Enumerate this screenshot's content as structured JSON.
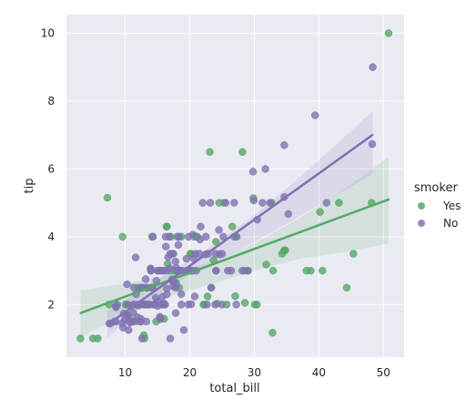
{
  "chart_data": {
    "type": "scatter",
    "title": "",
    "xlabel": "total_bill",
    "ylabel": "tip",
    "xlim": [
      0.9,
      53.2
    ],
    "ylim": [
      0.45,
      10.55
    ],
    "xticks": [
      10,
      20,
      30,
      40,
      50
    ],
    "yticks": [
      2,
      4,
      6,
      8,
      10
    ],
    "grid": true,
    "legend": {
      "title": "smoker",
      "placement": "right"
    },
    "series": [
      {
        "name": "Yes",
        "color": "#55a868",
        "fit": {
          "x": [
            3.1,
            50.8
          ],
          "y": [
            1.75,
            5.1
          ]
        },
        "ci": {
          "x": [
            3.1,
            10,
            17,
            24,
            30,
            37,
            44,
            50.8
          ],
          "upper": [
            2.42,
            2.62,
            2.9,
            3.3,
            3.8,
            4.55,
            5.4,
            6.35
          ],
          "lower": [
            1.05,
            1.7,
            2.25,
            2.65,
            3.0,
            3.35,
            3.55,
            3.8
          ]
        },
        "x": [
          3.07,
          5.75,
          7.25,
          7.51,
          9.6,
          10.07,
          10.34,
          10.59,
          11.02,
          11.59,
          12.16,
          12.9,
          13.0,
          13.42,
          14.15,
          15.06,
          15.69,
          16.04,
          16.47,
          16.58,
          17.07,
          17.31,
          17.51,
          18.04,
          19.44,
          20.27,
          20.69,
          21.01,
          22.23,
          22.76,
          23.1,
          23.33,
          24.06,
          24.27,
          25.29,
          26.59,
          27.05,
          27.28,
          28.17,
          28.44,
          29.85,
          30.4,
          31.85,
          32.68,
          32.83,
          34.3,
          38.07,
          38.73,
          40.55,
          43.11,
          44.3,
          45.35,
          48.17,
          50.81,
          5.0,
          7.74,
          12.03,
          13.81,
          15.48,
          16.4,
          18.35,
          20.08,
          22.12,
          24.55,
          26.86,
          28.97,
          30.06,
          32.9,
          34.63,
          34.81,
          40.17,
          13.94,
          14.78,
          16.9,
          18.71,
          19.82,
          21.16,
          23.68,
          25.71,
          28.55
        ],
        "y": [
          1.0,
          1.0,
          5.15,
          2.0,
          4.0,
          2.0,
          2.0,
          1.61,
          1.98,
          1.5,
          2.5,
          1.1,
          1.0,
          2.5,
          4.0,
          3.0,
          2.0,
          1.58,
          4.3,
          3.2,
          4.0,
          3.5,
          3.0,
          4.0,
          3.0,
          3.5,
          4.0,
          4.0,
          2.0,
          2.24,
          6.5,
          2.5,
          3.85,
          2.03,
          5.0,
          4.3,
          2.25,
          4.0,
          6.5,
          3.0,
          5.14,
          2.0,
          3.18,
          5.0,
          1.17,
          3.5,
          3.0,
          3.0,
          3.0,
          5.0,
          2.5,
          3.5,
          5.0,
          10.0,
          1.0,
          1.44,
          2.5,
          2.0,
          1.6,
          4.3,
          2.5,
          3.5,
          2.0,
          5.0,
          4.0,
          3.0,
          2.0,
          3.0,
          3.6,
          3.6,
          4.73,
          3.06,
          1.5,
          3.0,
          4.0,
          3.0,
          4.0,
          3.31,
          2.0,
          2.05
        ]
      },
      {
        "name": "No",
        "color": "#8172b2",
        "fit": {
          "x": [
            7.25,
            48.3
          ],
          "y": [
            1.4,
            7.0
          ]
        },
        "ci": {
          "x": [
            7.25,
            12,
            17,
            22,
            27,
            32,
            37,
            42,
            48.3
          ],
          "upper": [
            1.82,
            2.38,
            2.95,
            3.55,
            4.22,
            4.95,
            5.75,
            6.6,
            7.7
          ],
          "lower": [
            1.0,
            1.85,
            2.55,
            3.05,
            3.55,
            4.05,
            4.6,
            5.15,
            5.85
          ]
        },
        "x": [
          7.56,
          8.35,
          8.51,
          8.52,
          8.58,
          8.77,
          9.55,
          9.68,
          9.78,
          9.94,
          10.27,
          10.29,
          10.33,
          10.34,
          10.51,
          10.65,
          10.77,
          11.17,
          11.24,
          11.35,
          11.38,
          11.61,
          11.69,
          11.87,
          12.02,
          12.26,
          12.43,
          12.46,
          12.54,
          12.6,
          12.66,
          12.69,
          12.74,
          13.03,
          13.13,
          13.16,
          13.27,
          13.28,
          13.37,
          13.39,
          13.51,
          13.81,
          13.94,
          14.0,
          14.07,
          14.26,
          14.31,
          14.48,
          14.52,
          14.73,
          14.83,
          15.01,
          15.04,
          15.36,
          15.38,
          15.42,
          15.53,
          15.77,
          15.81,
          15.95,
          15.98,
          16.0,
          16.21,
          16.27,
          16.29,
          16.31,
          16.43,
          16.45,
          16.66,
          16.82,
          16.93,
          16.97,
          16.99,
          17.26,
          17.29,
          17.46,
          17.47,
          17.59,
          17.78,
          17.81,
          17.82,
          17.89,
          17.92,
          18.24,
          18.26,
          18.29,
          18.43,
          18.69,
          18.78,
          18.69,
          19.08,
          19.49,
          19.65,
          19.77,
          19.81,
          20.23,
          20.29,
          20.45,
          20.49,
          20.65,
          20.76,
          20.9,
          21.01,
          21.5,
          21.58,
          21.7,
          22.42,
          22.49,
          22.67,
          22.82,
          23.17,
          23.33,
          23.95,
          24.01,
          24.06,
          24.08,
          24.52,
          24.59,
          25.0,
          25.21,
          25.56,
          25.89,
          26.41,
          26.88,
          27.2,
          27.18,
          28.15,
          29.03,
          29.8,
          29.93,
          30.46,
          31.27,
          31.71,
          32.4,
          34.63,
          34.65,
          35.26,
          39.42,
          41.19,
          48.27,
          48.33,
          16.0,
          15.0,
          18.0,
          14.0,
          22.0,
          25.0,
          12.0
        ],
        "y": [
          1.44,
          1.5,
          1.96,
          1.5,
          1.92,
          2.0,
          1.45,
          1.32,
          1.73,
          1.56,
          1.71,
          2.6,
          1.67,
          2.0,
          1.25,
          1.5,
          1.47,
          1.5,
          1.76,
          2.5,
          2.0,
          3.39,
          2.31,
          1.63,
          1.97,
          1.5,
          1.58,
          1.5,
          2.5,
          1.0,
          2.5,
          2.0,
          2.01,
          2.0,
          2.0,
          2.75,
          2.5,
          1.5,
          2.0,
          2.0,
          2.0,
          2.0,
          3.06,
          3.0,
          2.5,
          2.5,
          4.0,
          2.0,
          2.0,
          2.2,
          2.7,
          2.09,
          1.96,
          1.64,
          3.0,
          1.57,
          3.0,
          2.23,
          3.0,
          2.0,
          2.03,
          2.0,
          2.0,
          4.0,
          3.71,
          3.0,
          2.3,
          2.47,
          3.4,
          4.0,
          3.07,
          3.5,
          1.0,
          2.74,
          2.71,
          2.54,
          3.5,
          2.64,
          3.27,
          2.5,
          1.75,
          2.64,
          3.08,
          3.76,
          3.0,
          4.0,
          3.0,
          2.31,
          3.0,
          2.0,
          1.25,
          3.35,
          3.0,
          2.0,
          4.0,
          2.01,
          3.0,
          3.0,
          4.06,
          3.35,
          2.24,
          3.5,
          3.0,
          3.5,
          3.92,
          4.3,
          3.48,
          4.0,
          2.0,
          3.5,
          5.0,
          2.5,
          2.0,
          3.5,
          3.0,
          3.0,
          4.2,
          3.48,
          3.5,
          4.0,
          5.0,
          3.0,
          3.0,
          5.0,
          2.0,
          4.0,
          3.0,
          3.0,
          5.92,
          5.07,
          4.5,
          5.0,
          6.0,
          5.0,
          6.7,
          5.17,
          4.67,
          7.58,
          5.0,
          6.73,
          9.0,
          3.0,
          3.0,
          3.0,
          3.0,
          5.0,
          2.0,
          2.0
        ]
      }
    ]
  }
}
